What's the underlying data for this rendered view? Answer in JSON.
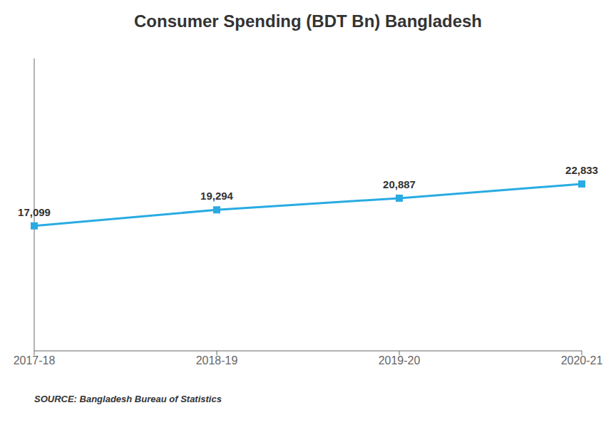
{
  "chart_data": {
    "type": "line",
    "title": "Consumer Spending (BDT Bn) Bangladesh",
    "categories": [
      "2017-18",
      "2018-19",
      "2019-20",
      "2020-21"
    ],
    "values": [
      17099,
      19294,
      20887,
      22833
    ],
    "value_labels": [
      "17,099",
      "19,294",
      "20,887",
      "22,833"
    ],
    "data_labels": true,
    "color": "#29ABE2",
    "marker": "square",
    "ylim": [
      0,
      40000
    ],
    "tick_labels": "x",
    "grid": false,
    "annotations": [
      "SOURCE: Bangladesh Bureau of Statistics"
    ]
  }
}
